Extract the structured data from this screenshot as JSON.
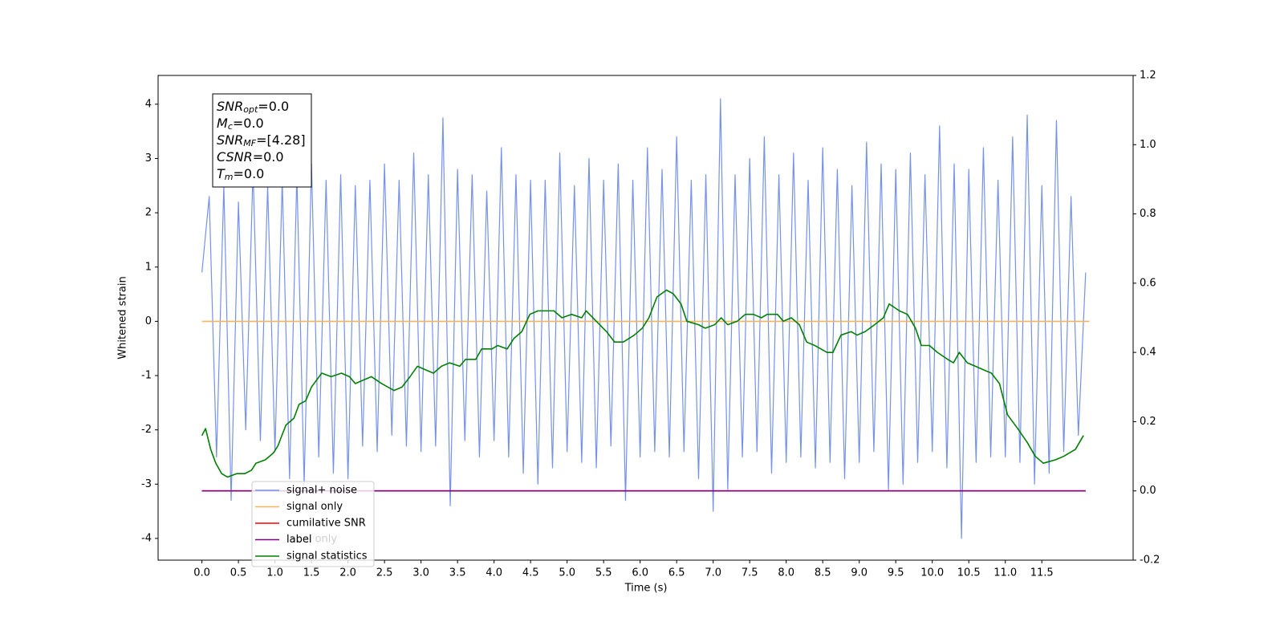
{
  "chart_data": {
    "type": "line",
    "xlabel": "Time (s)",
    "ylabel": "Whitened strain",
    "xlim": [
      -0.6,
      12.75
    ],
    "ylim": [
      -4.4,
      4.53
    ],
    "y2lim": [
      -0.2,
      1.2
    ],
    "xticks": [
      {
        "value": 0,
        "label": "0.0"
      },
      0.5,
      {
        "value": 1,
        "label": "1.0"
      },
      1.5,
      {
        "value": 2,
        "label": "2.0"
      },
      2.5,
      {
        "value": 3,
        "label": "3.0"
      },
      3.5,
      {
        "value": 4,
        "label": "4.0"
      },
      4.5,
      {
        "value": 5,
        "label": "5.0"
      },
      5.5,
      {
        "value": 6,
        "label": "6.0"
      },
      6.5,
      {
        "value": 7,
        "label": "7.0"
      },
      7.5,
      {
        "value": 8,
        "label": "8.0"
      },
      8.5,
      {
        "value": 9,
        "label": "9.0"
      },
      9.5,
      {
        "value": 10,
        "label": "10.0"
      },
      10.5,
      {
        "value": 11,
        "label": "11.0"
      },
      11.5
    ],
    "yticks": [
      -4,
      -3,
      -2,
      -1,
      0,
      1,
      2,
      3,
      4
    ],
    "y2ticks": [
      -0.2,
      {
        "value": 0,
        "label": "0.0"
      },
      0.2,
      0.4,
      0.6,
      0.8,
      {
        "value": 1,
        "label": "1.0"
      },
      1.2
    ],
    "legend": "lower left",
    "legend_overlap_text": "label only",
    "text_box": [
      {
        "name": "SNR",
        "sub": "opt",
        "text": "=0.0"
      },
      {
        "name": "M",
        "sub": "c",
        "text": "=0.0"
      },
      {
        "name": "SNR",
        "sub": "MF",
        "text": "=[4.28]"
      },
      {
        "name": "CSNR",
        "text": "=0.0"
      },
      {
        "name": "T",
        "sub": "m",
        "text": "=0.0"
      }
    ],
    "series": [
      {
        "name": "signal+ noise",
        "color": "#7592e8",
        "axis": "y",
        "x": [
          0,
          0.1,
          0.2,
          0.3,
          0.4,
          0.5,
          0.6,
          0.7,
          0.8,
          0.9,
          1,
          1.1,
          1.2,
          1.3,
          1.4,
          1.5,
          1.6,
          1.7,
          1.8,
          1.9,
          2,
          2.1,
          2.2,
          2.3,
          2.4,
          2.5,
          2.6,
          2.7,
          2.8,
          2.9,
          3,
          3.1,
          3.2,
          3.3,
          3.4,
          3.5,
          3.6,
          3.7,
          3.8,
          3.9,
          4,
          4.1,
          4.2,
          4.3,
          4.4,
          4.5,
          4.6,
          4.7,
          4.8,
          4.9,
          5,
          5.1,
          5.2,
          5.3,
          5.4,
          5.5,
          5.6,
          5.7,
          5.8,
          5.9,
          6,
          6.1,
          6.2,
          6.3,
          6.4,
          6.5,
          6.6,
          6.7,
          6.8,
          6.9,
          7,
          7.1,
          7.2,
          7.3,
          7.4,
          7.5,
          7.6,
          7.7,
          7.8,
          7.9,
          8,
          8.1,
          8.2,
          8.3,
          8.4,
          8.5,
          8.6,
          8.7,
          8.8,
          8.9,
          9,
          9.1,
          9.2,
          9.3,
          9.4,
          9.5,
          9.6,
          9.7,
          9.8,
          9.9,
          10,
          10.1,
          10.2,
          10.3,
          10.4,
          10.5,
          10.6,
          10.7,
          10.8,
          10.9,
          11,
          11.1,
          11.2,
          11.3,
          11.4,
          11.5,
          11.6,
          11.7,
          11.8,
          11.9,
          12,
          12.1
        ],
        "values": [
          0.9,
          2.3,
          -2.5,
          2.5,
          -3.3,
          2.2,
          -2.0,
          2.8,
          -2.2,
          2.5,
          -2.4,
          2.6,
          -2.9,
          2.7,
          -3.0,
          2.9,
          -2.5,
          2.6,
          -2.8,
          2.7,
          -2.9,
          2.5,
          -2.3,
          2.6,
          -2.4,
          2.9,
          -2.1,
          2.6,
          -2.3,
          3.1,
          -2.4,
          2.7,
          -2.3,
          3.75,
          -3.4,
          2.8,
          -2.2,
          2.7,
          -2.5,
          2.4,
          -2.2,
          3.2,
          -2.5,
          2.7,
          -2.8,
          2.6,
          -3.0,
          2.6,
          -2.7,
          3.1,
          -2.4,
          2.5,
          -2.6,
          3.0,
          -2.7,
          2.6,
          -2.3,
          2.9,
          -3.3,
          2.6,
          -2.5,
          3.2,
          -2.4,
          2.8,
          -2.5,
          3.4,
          -2.4,
          2.6,
          -2.9,
          2.7,
          -3.5,
          4.1,
          -3.1,
          2.7,
          -2.5,
          3.0,
          -2.4,
          3.4,
          -2.8,
          2.7,
          -2.6,
          3.1,
          -2.5,
          2.6,
          -2.7,
          3.2,
          -2.6,
          2.8,
          -2.9,
          2.5,
          -2.6,
          3.3,
          -2.4,
          2.9,
          -3.1,
          2.8,
          -3.0,
          3.1,
          -2.6,
          2.7,
          -2.4,
          3.6,
          -2.7,
          2.9,
          -4.0,
          2.8,
          -2.6,
          3.2,
          -2.5,
          2.6,
          -2.5,
          3.4,
          -2.6,
          3.8,
          -3.0,
          2.5,
          -2.8,
          3.7,
          -2.4,
          2.3,
          -2.1,
          0.9
        ]
      },
      {
        "name": "signal only",
        "color": "#f5b461",
        "axis": "y",
        "x": [
          0,
          12.15
        ],
        "values": [
          0,
          0
        ]
      },
      {
        "name": "cumilative SNR",
        "color": "red",
        "axis": "y2",
        "x": [
          0,
          12.1
        ],
        "values": [
          0,
          0
        ]
      },
      {
        "name": "label",
        "color": "purple",
        "axis": "y2",
        "x": [
          0,
          12.1
        ],
        "values": [
          0,
          0
        ]
      },
      {
        "name": "signal statistics",
        "color": "green",
        "axis": "y2",
        "x": [
          0,
          0.05,
          0.12,
          0.19,
          0.27,
          0.35,
          0.48,
          0.59,
          0.68,
          0.74,
          0.87,
          0.98,
          1.04,
          1.15,
          1.26,
          1.33,
          1.42,
          1.5,
          1.64,
          1.77,
          1.91,
          2.02,
          2.1,
          2.21,
          2.32,
          2.46,
          2.63,
          2.74,
          2.85,
          2.95,
          3.06,
          3.17,
          3.28,
          3.39,
          3.53,
          3.61,
          3.75,
          3.83,
          3.97,
          4.05,
          4.18,
          4.27,
          4.38,
          4.49,
          4.6,
          4.71,
          4.82,
          4.93,
          5.06,
          5.2,
          5.26,
          5.4,
          5.54,
          5.65,
          5.77,
          5.92,
          6.03,
          6.12,
          6.23,
          6.36,
          6.45,
          6.56,
          6.64,
          6.8,
          6.89,
          7.02,
          7.11,
          7.2,
          7.33,
          7.44,
          7.55,
          7.66,
          7.74,
          7.88,
          7.96,
          8.07,
          8.18,
          8.28,
          8.39,
          8.56,
          8.64,
          8.75,
          8.89,
          8.97,
          9.08,
          9.21,
          9.33,
          9.41,
          9.55,
          9.66,
          9.77,
          9.85,
          9.96,
          10.07,
          10.21,
          10.29,
          10.37,
          10.48,
          10.59,
          10.7,
          10.81,
          10.92,
          11.03,
          11.17,
          11.3,
          11.41,
          11.52,
          11.69,
          11.8,
          11.96,
          12.07
        ],
        "values": [
          0.16,
          0.18,
          0.12,
          0.08,
          0.05,
          0.04,
          0.05,
          0.05,
          0.06,
          0.08,
          0.09,
          0.11,
          0.13,
          0.19,
          0.21,
          0.25,
          0.26,
          0.3,
          0.34,
          0.33,
          0.34,
          0.33,
          0.31,
          0.32,
          0.33,
          0.31,
          0.29,
          0.3,
          0.33,
          0.36,
          0.35,
          0.34,
          0.36,
          0.37,
          0.36,
          0.38,
          0.38,
          0.41,
          0.41,
          0.42,
          0.41,
          0.44,
          0.46,
          0.51,
          0.52,
          0.52,
          0.52,
          0.5,
          0.51,
          0.5,
          0.52,
          0.49,
          0.46,
          0.43,
          0.43,
          0.45,
          0.47,
          0.5,
          0.56,
          0.58,
          0.57,
          0.54,
          0.49,
          0.48,
          0.47,
          0.48,
          0.5,
          0.48,
          0.49,
          0.51,
          0.51,
          0.5,
          0.51,
          0.51,
          0.49,
          0.5,
          0.48,
          0.43,
          0.42,
          0.4,
          0.4,
          0.45,
          0.46,
          0.45,
          0.46,
          0.48,
          0.5,
          0.54,
          0.52,
          0.51,
          0.47,
          0.42,
          0.42,
          0.4,
          0.38,
          0.37,
          0.4,
          0.37,
          0.36,
          0.35,
          0.34,
          0.31,
          0.22,
          0.18,
          0.14,
          0.1,
          0.08,
          0.09,
          0.1,
          0.12,
          0.16
        ]
      }
    ]
  }
}
